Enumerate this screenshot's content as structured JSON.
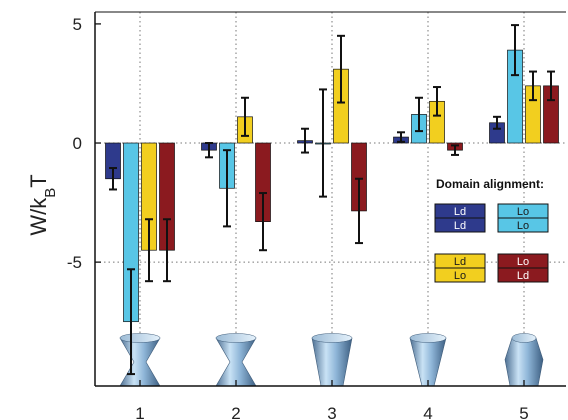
{
  "chart_data": {
    "type": "bar",
    "categories": [
      "1",
      "2",
      "3",
      "4",
      "5"
    ],
    "ylabel": "W/k_BT",
    "ylabel_main": "W/k",
    "ylabel_sub": "B",
    "ylabel_tail": "T",
    "ylim": [
      -10.2,
      5.5
    ],
    "yticks": [
      "5",
      "0",
      "-5"
    ],
    "grid": "dotted at integer categories and y = 0, -5",
    "series": [
      {
        "key": "ld_ld",
        "color": "#2e3a8c",
        "values": [
          -1.5,
          -0.3,
          0.1,
          0.25,
          0.85
        ],
        "errors": [
          0.45,
          0.3,
          0.5,
          0.2,
          0.25
        ]
      },
      {
        "key": "lo_lo",
        "color": "#58c6e6",
        "values": [
          -7.5,
          -1.9,
          0.0,
          1.2,
          3.9
        ],
        "errors": [
          2.2,
          1.6,
          2.25,
          0.7,
          1.05
        ]
      },
      {
        "key": "ld_lo",
        "color": "#f2cf1f",
        "values": [
          -4.5,
          1.1,
          3.1,
          1.75,
          2.4
        ],
        "errors": [
          1.3,
          0.8,
          1.4,
          0.6,
          0.6
        ]
      },
      {
        "key": "lo_ld",
        "color": "#8b1a1f",
        "values": [
          -4.5,
          -3.3,
          -2.85,
          -0.3,
          2.4
        ],
        "errors": [
          1.3,
          1.2,
          1.35,
          0.2,
          0.6
        ]
      }
    ],
    "legend": {
      "title": "Domain alignment:",
      "placement": "right",
      "items": [
        {
          "series": "ld_ld",
          "top": "Ld",
          "bottom": "Ld",
          "text_color": "#ffffff"
        },
        {
          "series": "lo_lo",
          "top": "Lo",
          "bottom": "Lo",
          "text_color": "#1a1a1a"
        },
        {
          "series": "ld_lo",
          "top": "Ld",
          "bottom": "Lo",
          "text_color": "#1a1a1a"
        },
        {
          "series": "lo_ld",
          "top": "Lo",
          "bottom": "Ld",
          "text_color": "#ffffff"
        }
      ]
    },
    "shapes": [
      "hourglass",
      "hourglass",
      "cone-narrow-bottom",
      "cone-narrow-bottom-tapered",
      "cone-wide-bottom"
    ]
  }
}
